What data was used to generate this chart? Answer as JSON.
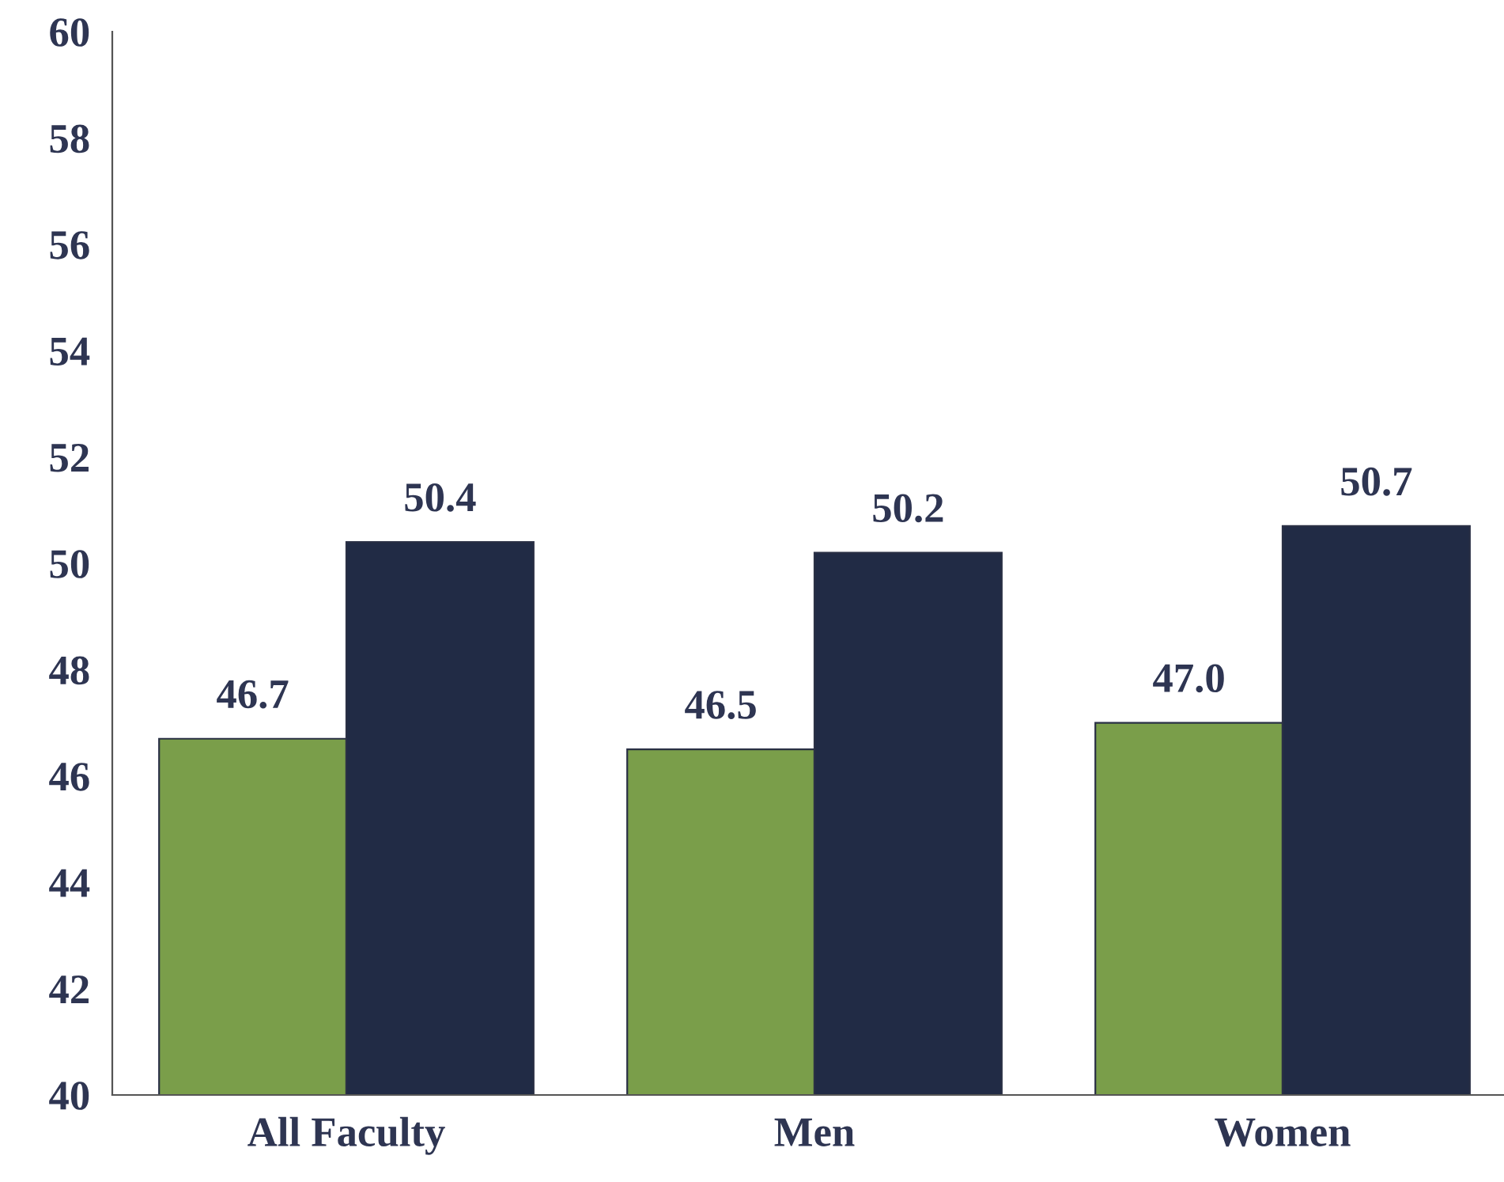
{
  "chart_data": {
    "type": "bar",
    "categories": [
      "All Faculty",
      "Men",
      "Women"
    ],
    "series": [
      {
        "color": "#7a9e4a",
        "values": [
          46.7,
          46.5,
          47.0
        ],
        "value_labels": [
          "46.7",
          "46.5",
          "47.0"
        ]
      },
      {
        "color": "#212b45",
        "values": [
          50.4,
          50.2,
          50.7
        ],
        "value_labels": [
          "50.4",
          "50.2",
          "50.7"
        ]
      }
    ],
    "ylim": [
      40,
      60
    ],
    "yticks": [
      40,
      42,
      44,
      46,
      48,
      50,
      52,
      54,
      56,
      58,
      60
    ],
    "grid": false
  }
}
